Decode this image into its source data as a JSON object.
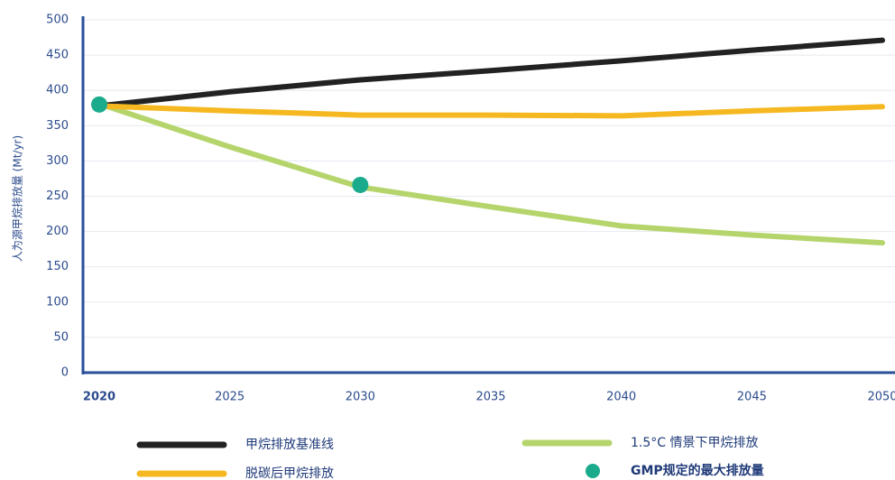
{
  "chart_data": {
    "type": "line",
    "ylabel": "人为源甲烷排放量 (Mt/yr)",
    "x": [
      2020,
      2025,
      2030,
      2035,
      2040,
      2045,
      2050
    ],
    "xlim": [
      2020,
      2050
    ],
    "xticks": [
      2020,
      2025,
      2030,
      2035,
      2040,
      2045,
      2050
    ],
    "ylim": [
      0,
      500
    ],
    "yticks": [
      0,
      50,
      100,
      150,
      200,
      250,
      300,
      350,
      400,
      450,
      500
    ],
    "grid": true,
    "series": [
      {
        "name": "甲烷排放基准线",
        "color": "#222222",
        "values": [
          378,
          398,
          415,
          428,
          442,
          457,
          471
        ]
      },
      {
        "name": "1.5°C 情景下甲烷排放",
        "color": "#b5d56c",
        "values": [
          381,
          320,
          263,
          235,
          208,
          195,
          184
        ]
      },
      {
        "name": "脱碳后甲烷排放",
        "color": "#f5b820",
        "values": [
          378,
          371,
          365,
          365,
          364,
          371,
          377
        ]
      }
    ],
    "markers": {
      "type": "scatter",
      "name": "GMP规定的最大排放量",
      "color": "#1aab8c",
      "x": [
        2020,
        2030
      ],
      "values": [
        380,
        266
      ]
    }
  }
}
